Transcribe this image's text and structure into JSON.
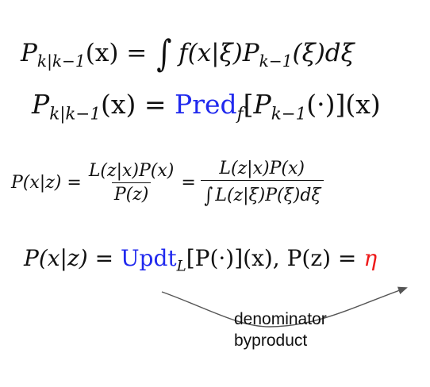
{
  "equations": {
    "prediction_integral": {
      "P": "P",
      "sub": "k|k−1",
      "lhs_arg": "(x) =",
      "integral": "∫",
      "f": "f",
      "f_args": "(x|ξ)",
      "P2": "P",
      "sub2": "k−1",
      "rest": "(ξ)dξ"
    },
    "prediction_operator": {
      "P": "P",
      "sub": "k|k−1",
      "lhs_arg": "(x) =",
      "op": "Pred",
      "op_sub": "f",
      "open": "[",
      "P2": "P",
      "sub2": "k−1",
      "rest": "(·)](x)"
    },
    "bayes": {
      "lhs": "P(x|z) =",
      "num1": "L(z|x)P(x)",
      "den1": "P(z)",
      "eq": "=",
      "num2": "L(z|x)P(x)",
      "integral": "∫",
      "den2": "L(z|ξ)P(ξ)dξ"
    },
    "update": {
      "lhs": "P(x|z) =",
      "op": "Updt",
      "op_sub": "L",
      "rest": "[P(·)](x),  P(z) =",
      "eta": "η"
    }
  },
  "annotation": {
    "line1": "denominator",
    "line2": "byproduct"
  },
  "colors": {
    "operator": "#2029ee",
    "eta": "#ee1a1a",
    "arrow": "#555555"
  }
}
